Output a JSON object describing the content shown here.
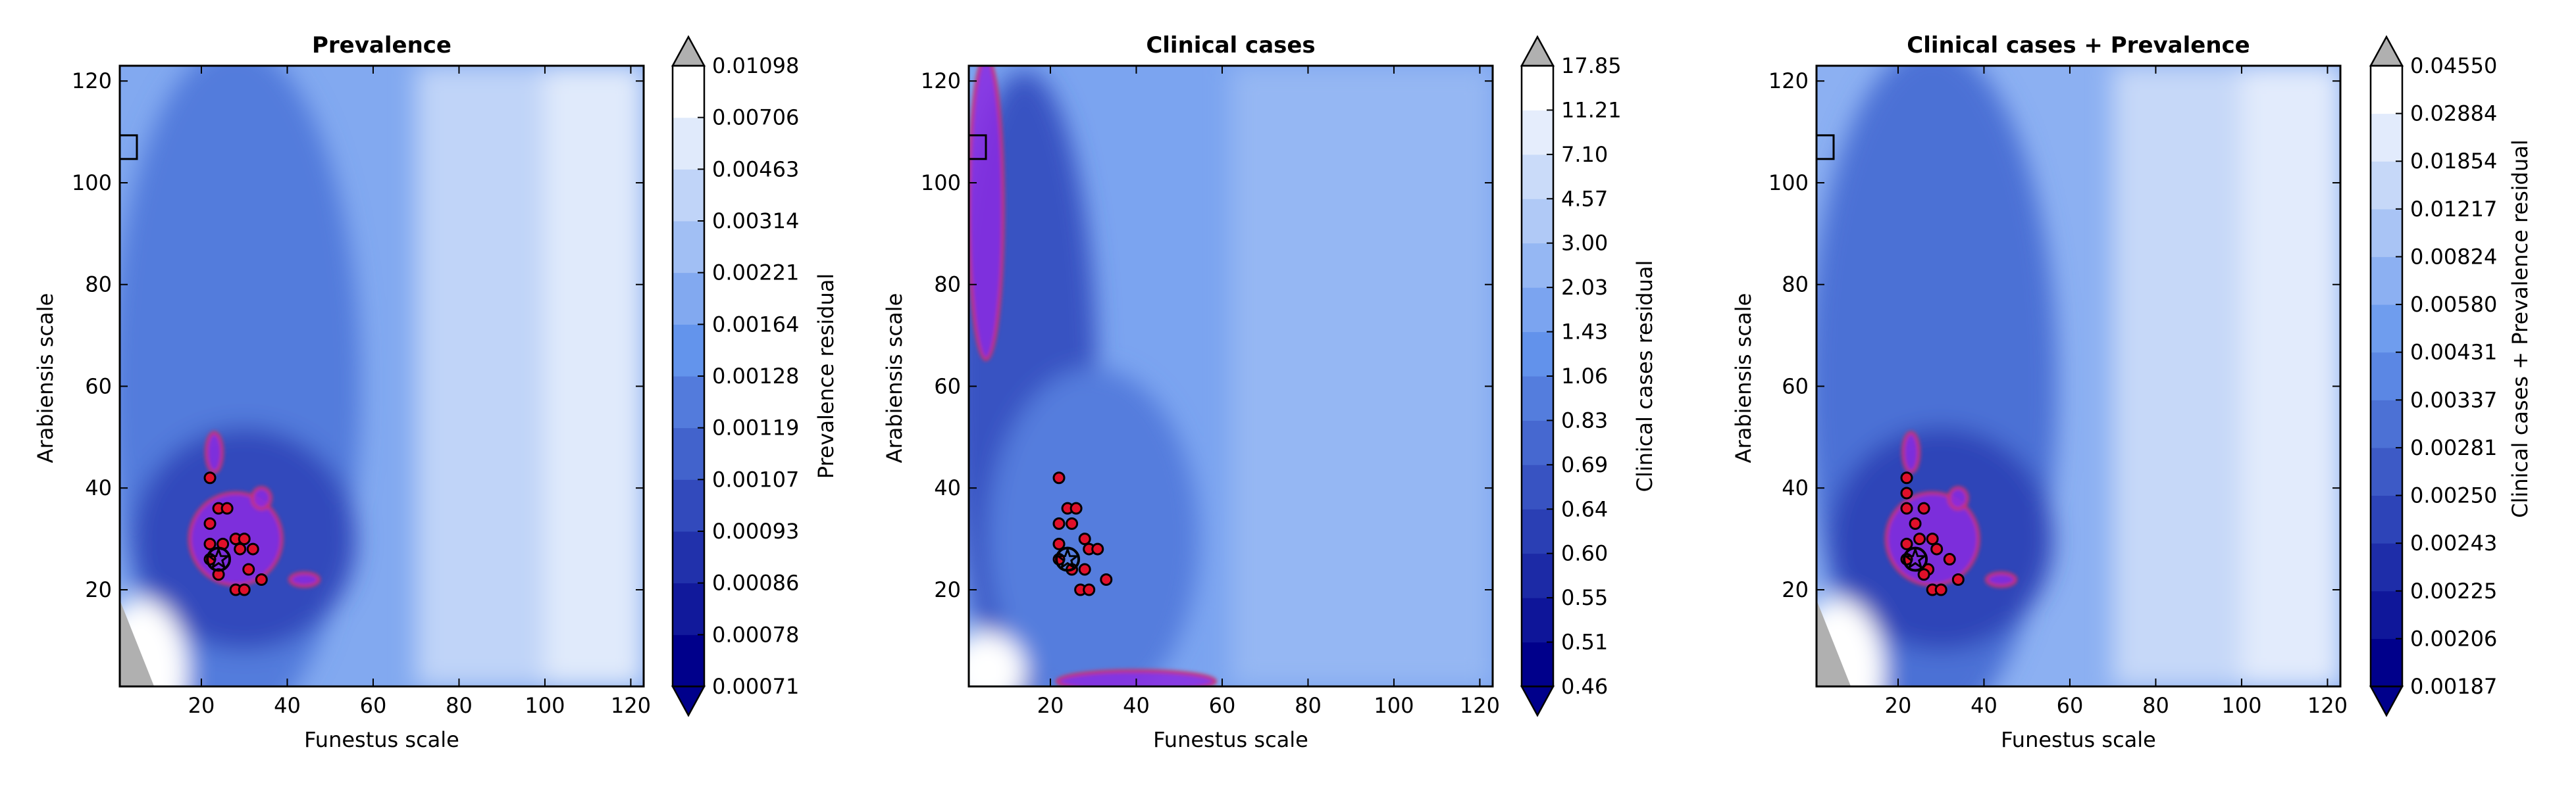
{
  "chart_data": [
    {
      "type": "heatmap",
      "title": "Prevalence",
      "xlabel": "Funestus scale",
      "ylabel": "Arabiensis scale",
      "xlim": [
        1,
        123
      ],
      "ylim": [
        1,
        123
      ],
      "xticks": [
        20,
        40,
        60,
        80,
        100,
        120
      ],
      "yticks": [
        20,
        40,
        60,
        80,
        100,
        120
      ],
      "colorbar_label": "Prevalence residual",
      "colorbar_ticks": [
        "0.00071",
        "0.00078",
        "0.00086",
        "0.00093",
        "0.00107",
        "0.00119",
        "0.00128",
        "0.00164",
        "0.00221",
        "0.00314",
        "0.00463",
        "0.00706",
        "0.01098"
      ],
      "colorbar_extend": "both",
      "lowest_region_color": "#00008b",
      "highest_region_color": "#ffffff",
      "over_color": "#b0b0b0",
      "hotspot_outline_color": "#c8326e",
      "hotspot_fill_color": "#8a2be2",
      "points": [
        [
          22,
          42
        ],
        [
          22,
          33
        ],
        [
          22,
          29
        ],
        [
          24,
          36
        ],
        [
          25,
          29
        ],
        [
          26,
          36
        ],
        [
          28,
          30
        ],
        [
          28,
          20
        ],
        [
          29,
          28
        ],
        [
          30,
          20
        ],
        [
          30,
          30
        ],
        [
          31,
          24
        ],
        [
          32,
          28
        ],
        [
          34,
          22
        ],
        [
          22,
          26
        ],
        [
          24,
          23
        ]
      ],
      "best_point": [
        24,
        26
      ],
      "marker_box": [
        2,
        107
      ]
    },
    {
      "type": "heatmap",
      "title": "Clinical cases",
      "xlabel": "Funestus scale",
      "ylabel": "Arabiensis scale",
      "xlim": [
        1,
        123
      ],
      "ylim": [
        1,
        123
      ],
      "xticks": [
        20,
        40,
        60,
        80,
        100,
        120
      ],
      "yticks": [
        20,
        40,
        60,
        80,
        100,
        120
      ],
      "colorbar_label": "Clinical cases residual",
      "colorbar_ticks": [
        "0.46",
        "0.51",
        "0.55",
        "0.60",
        "0.64",
        "0.69",
        "0.83",
        "1.06",
        "1.43",
        "2.03",
        "3.00",
        "4.57",
        "7.10",
        "11.21",
        "17.85"
      ],
      "colorbar_extend": "both",
      "lowest_region_color": "#00008b",
      "highest_region_color": "#ffffff",
      "over_color": "#b0b0b0",
      "hotspot_outline_color": "#c8326e",
      "hotspot_fill_color": "#8a2be2",
      "points": [
        [
          22,
          42
        ],
        [
          24,
          36
        ],
        [
          26,
          36
        ],
        [
          22,
          33
        ],
        [
          25,
          33
        ],
        [
          22,
          29
        ],
        [
          28,
          30
        ],
        [
          29,
          28
        ],
        [
          31,
          28
        ],
        [
          28,
          24
        ],
        [
          25,
          24
        ],
        [
          27,
          20
        ],
        [
          29,
          20
        ],
        [
          33,
          22
        ],
        [
          22,
          26
        ]
      ],
      "best_point": [
        24,
        26
      ],
      "marker_box": [
        2,
        107
      ]
    },
    {
      "type": "heatmap",
      "title": "Clinical cases + Prevalence",
      "xlabel": "Funestus scale",
      "ylabel": "Arabiensis scale",
      "xlim": [
        1,
        123
      ],
      "ylim": [
        1,
        123
      ],
      "xticks": [
        20,
        40,
        60,
        80,
        100,
        120
      ],
      "yticks": [
        20,
        40,
        60,
        80,
        100,
        120
      ],
      "colorbar_label": "Clinical cases + Prevalence residual",
      "colorbar_ticks": [
        "0.00187",
        "0.00206",
        "0.00225",
        "0.00243",
        "0.00250",
        "0.00281",
        "0.00337",
        "0.00431",
        "0.00580",
        "0.00824",
        "0.01217",
        "0.01854",
        "0.02884",
        "0.04550"
      ],
      "colorbar_extend": "both",
      "lowest_region_color": "#00008b",
      "highest_region_color": "#ffffff",
      "over_color": "#b0b0b0",
      "hotspot_outline_color": "#c8326e",
      "hotspot_fill_color": "#8a2be2",
      "points": [
        [
          22,
          42
        ],
        [
          22,
          39
        ],
        [
          22,
          36
        ],
        [
          24,
          33
        ],
        [
          26,
          36
        ],
        [
          22,
          29
        ],
        [
          25,
          30
        ],
        [
          28,
          30
        ],
        [
          29,
          28
        ],
        [
          27,
          24
        ],
        [
          28,
          20
        ],
        [
          30,
          20
        ],
        [
          32,
          26
        ],
        [
          34,
          22
        ],
        [
          22,
          26
        ],
        [
          26,
          23
        ]
      ],
      "best_point": [
        24,
        26
      ],
      "marker_box": [
        2,
        107
      ]
    }
  ]
}
